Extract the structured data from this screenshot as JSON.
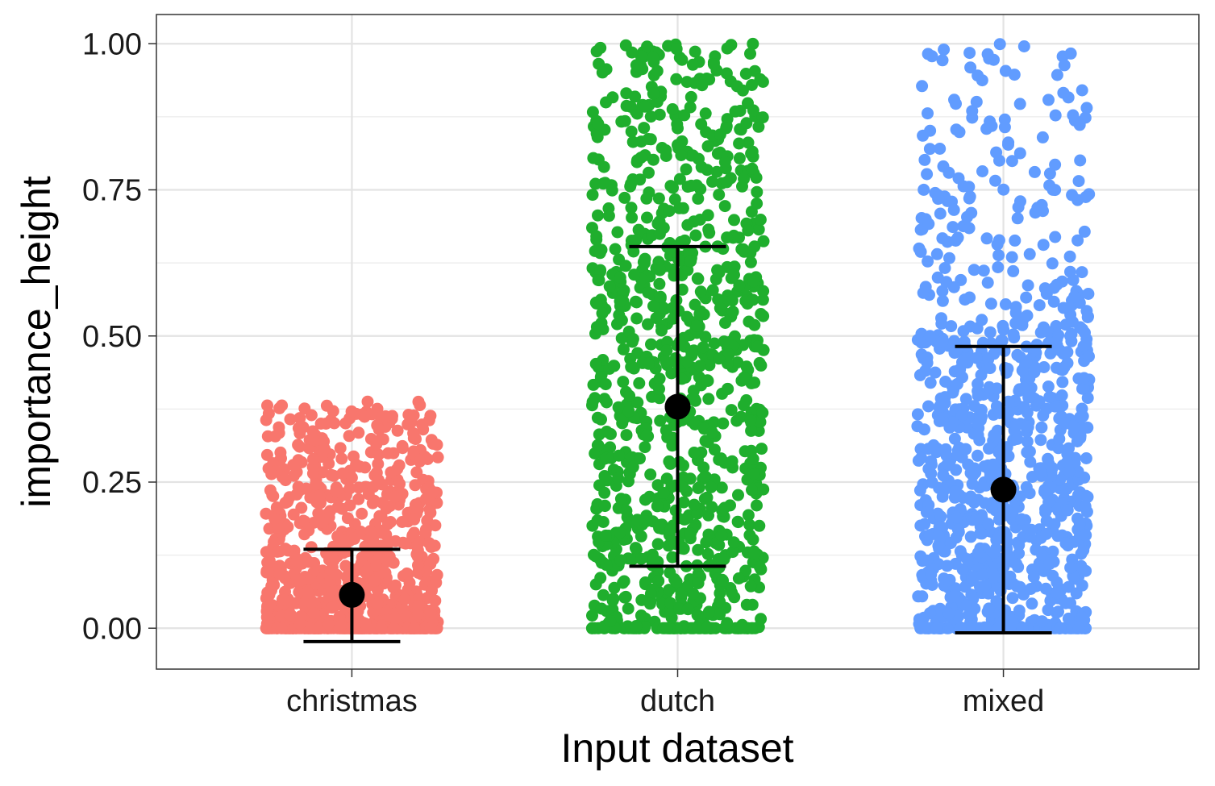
{
  "chart_data": {
    "type": "scatter",
    "subtype": "jitter-strip-with-mean-errorbars",
    "title": "",
    "xlabel": "Input dataset",
    "ylabel": "importance_height",
    "categories": [
      "christmas",
      "dutch",
      "mixed"
    ],
    "ylim": [
      -0.07,
      1.05
    ],
    "yticks": [
      0.0,
      0.25,
      0.5,
      0.75,
      1.0
    ],
    "ytick_labels": [
      "0.00",
      "0.25",
      "0.50",
      "0.75",
      "1.00"
    ],
    "grid": true,
    "legend": "none",
    "series": [
      {
        "category": "christmas",
        "color": "#F8766D",
        "approx_points": 1000,
        "y_max": 0.39,
        "distribution": "heavily concentrated near 0, thinning toward 0.39",
        "mean": 0.057,
        "error_low": -0.023,
        "error_high": 0.135
      },
      {
        "category": "dutch",
        "color": "#1FAE2D",
        "approx_points": 1000,
        "y_max": 1.0,
        "distribution": "spread across 0 to 1, denser below 0.65",
        "mean": 0.379,
        "error_low": 0.106,
        "error_high": 0.653
      },
      {
        "category": "mixed",
        "color": "#619CFF",
        "approx_points": 1000,
        "y_max": 1.0,
        "distribution": "dense from 0 to 0.5, sparse from 0.5 to 1",
        "mean": 0.237,
        "error_low": -0.008,
        "error_high": 0.482
      }
    ],
    "mean_marker_color": "#000000"
  }
}
